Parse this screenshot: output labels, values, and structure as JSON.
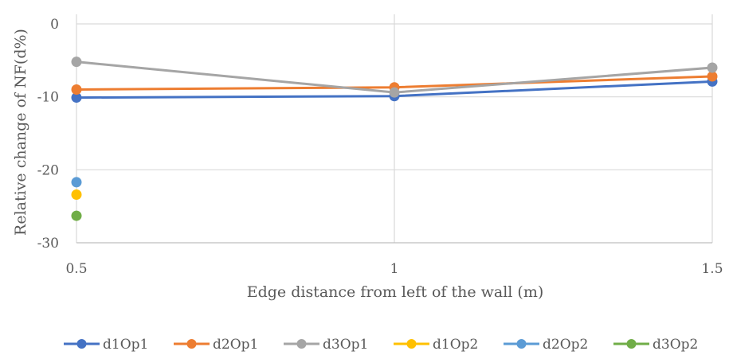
{
  "chart_data": {
    "type": "line",
    "title": "",
    "xlabel": "Edge distance from left of the wall (m)",
    "ylabel": "Relative change of NF(d%)",
    "x": [
      0.5,
      1,
      1.5
    ],
    "x_ticks": [
      "0.5",
      "1",
      "1.5"
    ],
    "xlim": [
      0.5,
      1.5
    ],
    "y_ticks": [
      0,
      -10,
      -20,
      -30
    ],
    "y_tick_labels": [
      "0",
      "-10",
      "-20",
      "-30"
    ],
    "ylim": [
      -30,
      0
    ],
    "grid": true,
    "legend_position": "bottom",
    "series": [
      {
        "name": "d1Op1",
        "color": "#4472C4",
        "values": [
          -10.1,
          -9.9,
          -7.9
        ]
      },
      {
        "name": "d2Op1",
        "color": "#ED7D31",
        "values": [
          -9.0,
          -8.7,
          -7.2
        ]
      },
      {
        "name": "d3Op1",
        "color": "#A5A5A5",
        "values": [
          -5.2,
          -9.4,
          -6.0
        ]
      },
      {
        "name": "d1Op2",
        "color": "#FFC000",
        "values": [
          -23.4,
          null,
          null
        ]
      },
      {
        "name": "d2Op2",
        "color": "#5B9BD5",
        "values": [
          -21.7,
          null,
          null
        ]
      },
      {
        "name": "d3Op2",
        "color": "#70AD47",
        "values": [
          -26.3,
          null,
          null
        ]
      }
    ]
  }
}
